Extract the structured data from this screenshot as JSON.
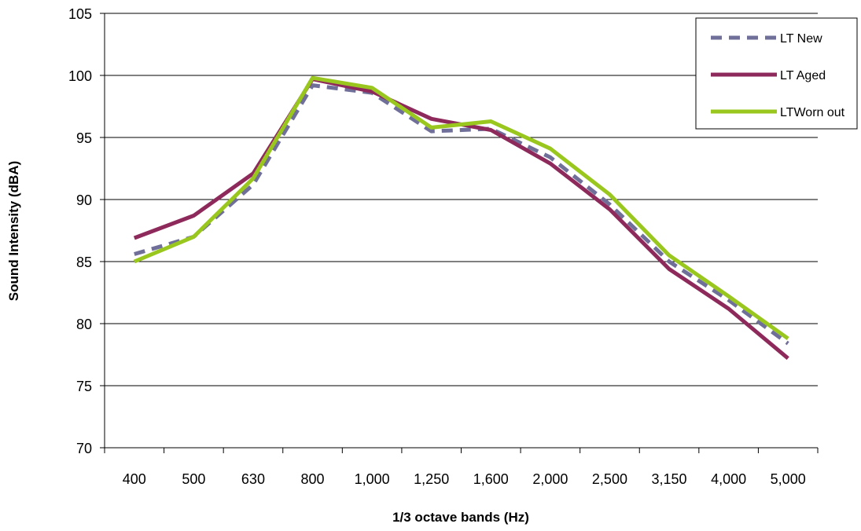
{
  "chart_data": {
    "type": "line",
    "title": "",
    "xlabel": "1/3 octave bands (Hz)",
    "ylabel": "Sound Intensity (dBA)",
    "categories": [
      "400",
      "500",
      "630",
      "800",
      "1,000",
      "1,250",
      "1,600",
      "2,000",
      "2,500",
      "3,150",
      "4,000",
      "5,000"
    ],
    "ylim": [
      70,
      105
    ],
    "yticks": [
      70,
      75,
      80,
      85,
      90,
      95,
      100,
      105
    ],
    "grid": "horizontal",
    "legend_position": "top-right",
    "series": [
      {
        "name": "LT New",
        "color": "#6F6F9A",
        "dash": "dashed",
        "values": [
          85.6,
          87.0,
          91.2,
          99.2,
          98.6,
          95.5,
          95.7,
          93.4,
          89.6,
          85.0,
          81.9,
          78.4
        ]
      },
      {
        "name": "LT Aged",
        "color": "#8E2A5B",
        "dash": "solid",
        "values": [
          86.9,
          88.7,
          92.1,
          99.7,
          98.7,
          96.5,
          95.6,
          92.9,
          89.2,
          84.4,
          81.2,
          77.2
        ]
      },
      {
        "name": "LTWorn out",
        "color": "#99C71E",
        "dash": "solid",
        "values": [
          85.0,
          87.0,
          91.7,
          99.8,
          99.0,
          95.8,
          96.3,
          94.1,
          90.4,
          85.5,
          82.2,
          78.8
        ]
      }
    ]
  }
}
